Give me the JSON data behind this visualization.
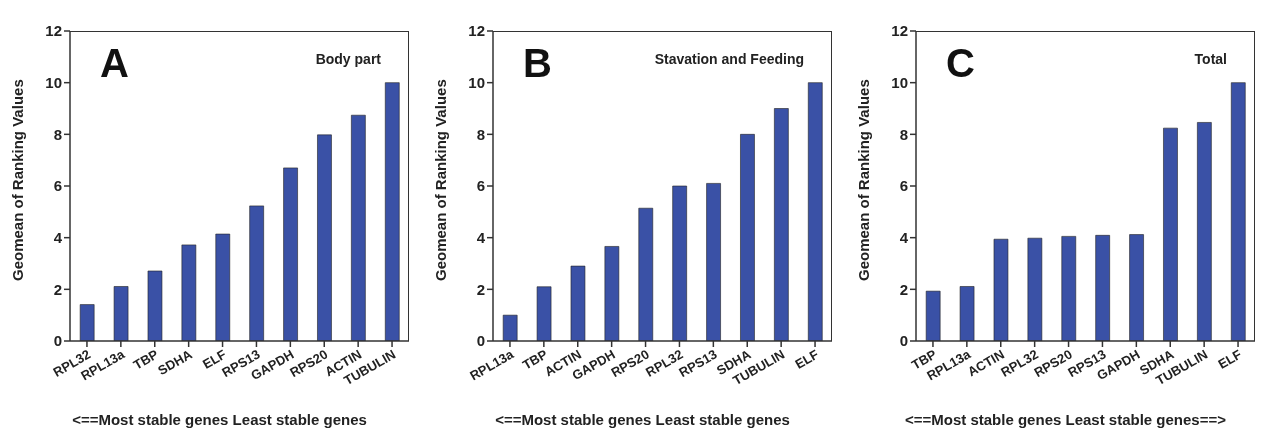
{
  "chart_data": [
    {
      "type": "bar",
      "title": "Body part",
      "annotations": [
        "A"
      ],
      "ylabel": "Geomean of Ranking Values",
      "xlabel": "<==Most stable genes  Least stable genes",
      "categories": [
        "RPL32",
        "RPL13a",
        "TBP",
        "SDHA",
        "ELF",
        "RPS13",
        "GAPDH",
        "RPS20",
        "ACTIN",
        "TUBULIN"
      ],
      "values": [
        1.41,
        2.11,
        2.71,
        3.72,
        4.14,
        5.23,
        6.7,
        7.98,
        8.74,
        10.0
      ],
      "color": "#3a51a6",
      "ylim": [
        0,
        12
      ],
      "yticks": [
        0,
        2,
        4,
        6,
        8,
        10,
        12
      ],
      "grid": false
    },
    {
      "type": "bar",
      "title": "Stavation and Feeding",
      "annotations": [
        "B"
      ],
      "ylabel": "Geomean of Ranking Values",
      "xlabel": "<==Most stable genes  Least stable genes",
      "categories": [
        "RPL13a",
        "TBP",
        "ACTIN",
        "GAPDH",
        "RPS20",
        "RPL32",
        "RPS13",
        "SDHA",
        "TUBULIN",
        "ELF"
      ],
      "values": [
        1.0,
        2.1,
        2.9,
        3.66,
        5.14,
        6.0,
        6.1,
        8.0,
        9.0,
        10.0
      ],
      "color": "#3a51a6",
      "ylim": [
        0,
        12
      ],
      "yticks": [
        0,
        2,
        4,
        6,
        8,
        10,
        12
      ],
      "grid": false
    },
    {
      "type": "bar",
      "title": "Total",
      "annotations": [
        "C"
      ],
      "ylabel": "Geomean of Ranking Values",
      "xlabel": "<==Most stable genes  Least stable genes==>",
      "categories": [
        "TBP",
        "RPL13a",
        "ACTIN",
        "RPL32",
        "RPS20",
        "RPS13",
        "GAPDH",
        "SDHA",
        "TUBULIN",
        "ELF"
      ],
      "values": [
        1.93,
        2.11,
        3.94,
        3.98,
        4.05,
        4.09,
        4.12,
        8.24,
        8.46,
        10.0
      ],
      "color": "#3a51a6",
      "ylim": [
        0,
        12
      ],
      "yticks": [
        0,
        2,
        4,
        6,
        8,
        10,
        12
      ],
      "grid": false
    }
  ]
}
